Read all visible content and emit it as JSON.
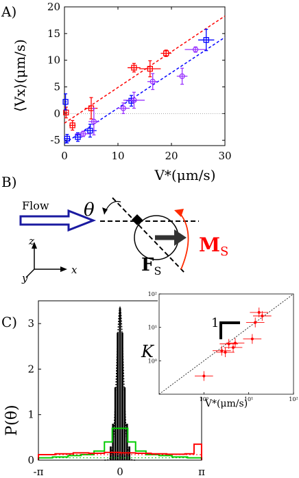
{
  "panels": {
    "a": {
      "label": "A)"
    },
    "b": {
      "label": "B)",
      "flow_label": "Flow",
      "theta_label": "θ",
      "force_label": "F",
      "force_sub": "S",
      "moment_label": "M",
      "moment_sub": "S",
      "axis_z": "z",
      "axis_y": "y",
      "axis_x": "x",
      "colors": {
        "flow": "#1a1aa0",
        "moment": "#ff0000",
        "body": "#000000"
      }
    },
    "c": {
      "label": "C)",
      "slope_label": "1"
    }
  },
  "chart_data": [
    {
      "id": "panel-a",
      "type": "scatter",
      "xlabel": "V*(μm/s)",
      "ylabel": "⟨Vx⟩(μm/s)",
      "xlim": [
        0,
        30
      ],
      "ylim": [
        -6,
        20
      ],
      "xticks": [
        "0",
        "10",
        "20",
        "30"
      ],
      "yticks": [
        "-5",
        "0",
        "5",
        "10",
        "15",
        "20"
      ],
      "grid": false,
      "series": [
        {
          "color": "#ff0000",
          "marker": "square",
          "points": [
            [
              0.3,
              0.2,
              0.3,
              1.0
            ],
            [
              1.5,
              -2.2,
              0.6,
              0.9
            ],
            [
              5.0,
              1.0,
              1.2,
              2.0
            ],
            [
              13.0,
              8.6,
              1.2,
              0.8
            ],
            [
              16.0,
              8.4,
              2.0,
              1.5
            ],
            [
              19.0,
              11.3,
              1.0,
              0.6
            ]
          ],
          "fit": [
            [
              0,
              -1.8
            ],
            [
              30,
              18.3
            ]
          ]
        },
        {
          "color": "#0000ff",
          "marker": "square",
          "points": [
            [
              0.2,
              2.2,
              0.2,
              1.5
            ],
            [
              0.5,
              -4.7,
              0.6,
              0.8
            ],
            [
              2.5,
              -4.4,
              0.8,
              0.8
            ],
            [
              4.8,
              -3.2,
              1.2,
              1.2
            ],
            [
              12.5,
              2.4,
              1.0,
              1.0
            ],
            [
              26.5,
              13.8,
              1.5,
              2.0
            ]
          ],
          "fit": [
            [
              0,
              -5.6
            ],
            [
              30,
              14.3
            ]
          ]
        },
        {
          "color": "#9933ff",
          "marker": "circle",
          "points": [
            [
              3.5,
              -3.8,
              1.5,
              0.5
            ],
            [
              5.5,
              -1.5,
              1.0,
              2.5
            ],
            [
              11.0,
              1.0,
              1.2,
              1.0
            ],
            [
              13.0,
              2.5,
              2.0,
              1.5
            ],
            [
              16.5,
              6.0,
              1.0,
              1.5
            ],
            [
              22.0,
              7.0,
              1.0,
              1.5
            ],
            [
              24.5,
              12.0,
              2.0,
              0.5
            ]
          ]
        }
      ],
      "zero_line": true
    },
    {
      "id": "panel-c-main",
      "type": "bar",
      "ylabel": "P(θ)",
      "xlim": [
        -3.1416,
        3.1416
      ],
      "ylim": [
        0,
        3.5
      ],
      "xticks": [
        "-π",
        "0",
        "π"
      ],
      "yticks": [
        "0",
        "1",
        "2",
        "3"
      ],
      "series": [
        {
          "name": "",
          "color": "#000000",
          "style": "bar",
          "centers": [
            -0.36,
            -0.27,
            -0.18,
            -0.09,
            0.0,
            0.09,
            0.18,
            0.27,
            0.36
          ],
          "values": [
            0.3,
            0.8,
            1.6,
            2.8,
            3.35,
            2.8,
            1.6,
            0.8,
            0.3
          ]
        },
        {
          "name": "",
          "color": "#00cc00",
          "style": "step",
          "edges": [
            -3.14,
            -2.6,
            -2.0,
            -1.5,
            -1.0,
            -0.6,
            -0.3,
            0.0,
            0.3,
            0.6,
            1.0,
            1.5,
            2.0,
            2.6,
            3.14
          ],
          "values": [
            0.05,
            0.07,
            0.1,
            0.12,
            0.2,
            0.4,
            0.7,
            0.7,
            0.4,
            0.2,
            0.12,
            0.1,
            0.07,
            0.05
          ]
        },
        {
          "name": "",
          "color": "#ff0000",
          "style": "step",
          "edges": [
            -3.14,
            -2.5,
            -1.8,
            -1.2,
            -0.6,
            0.0,
            0.6,
            1.2,
            1.8,
            2.5,
            2.85,
            3.14
          ],
          "values": [
            0.12,
            0.14,
            0.16,
            0.15,
            0.17,
            0.16,
            0.15,
            0.14,
            0.13,
            0.14,
            0.35
          ]
        }
      ]
    },
    {
      "id": "panel-c-inset",
      "type": "scatter",
      "xscale": "log",
      "yscale": "log",
      "xlabel": "V*(μm/s)",
      "ylabel": "K",
      "xlim": [
        0.1,
        100
      ],
      "ylim": [
        0.1,
        100
      ],
      "xticks": [
        "10⁰",
        "10¹",
        "10²"
      ],
      "yticks": [
        "10⁰",
        "10¹",
        "10²"
      ],
      "series": [
        {
          "color": "#ff0000",
          "marker": "circle",
          "points": [
            [
              1.0,
              0.35
            ],
            [
              2.5,
              2.0
            ],
            [
              3.0,
              1.8
            ],
            [
              3.6,
              3.2
            ],
            [
              4.5,
              2.5
            ],
            [
              5.0,
              3.4
            ],
            [
              12.0,
              4.5
            ],
            [
              14.0,
              14.0
            ],
            [
              17.0,
              28.0
            ],
            [
              20.0,
              22.0
            ]
          ]
        }
      ],
      "reference_line": [
        [
          0.1,
          0.1
        ],
        [
          100,
          100
        ]
      ]
    }
  ]
}
